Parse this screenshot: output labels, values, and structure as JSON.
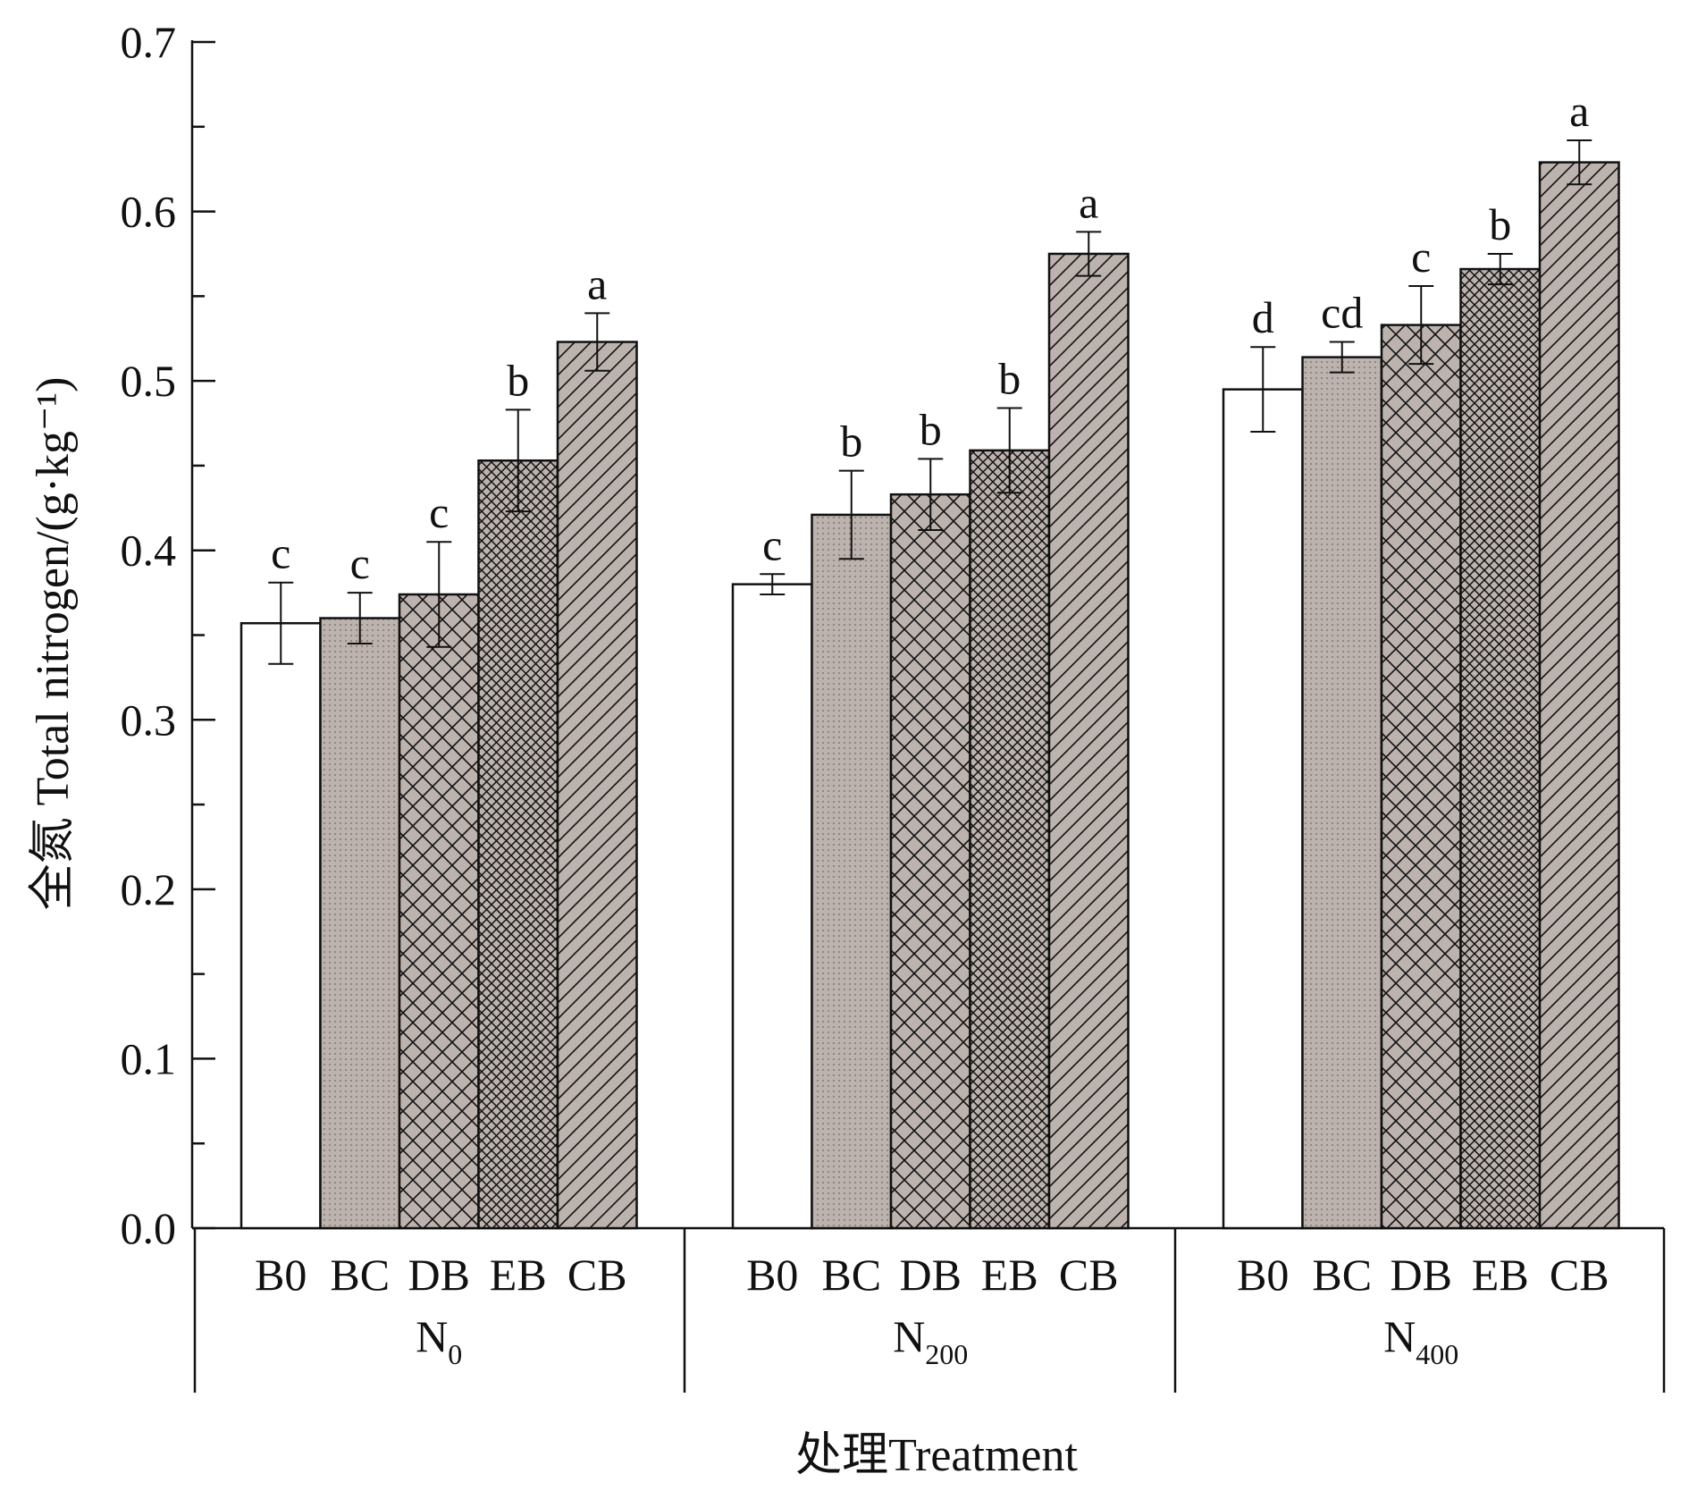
{
  "chart_data": {
    "type": "bar",
    "ylabel": "全氮 Total nitrogen/(g·kg⁻¹)",
    "xlabel": "处理Treatment",
    "ylim": [
      0,
      0.7
    ],
    "yticks": [
      "0.0",
      "0.1",
      "0.2",
      "0.3",
      "0.4",
      "0.5",
      "0.6",
      "0.7"
    ],
    "ytick_values": [
      0,
      0.1,
      0.2,
      0.3,
      0.4,
      0.5,
      0.6,
      0.7
    ],
    "categories": [
      "B0",
      "BC",
      "DB",
      "EB",
      "CB"
    ],
    "groups": [
      {
        "label": "N",
        "sub": "0",
        "values": [
          0.357,
          0.36,
          0.374,
          0.453,
          0.523
        ],
        "errors": [
          0.024,
          0.015,
          0.031,
          0.03,
          0.017
        ],
        "letters": [
          "c",
          "c",
          "c",
          "b",
          "a"
        ]
      },
      {
        "label": "N",
        "sub": "200",
        "values": [
          0.38,
          0.421,
          0.433,
          0.459,
          0.575
        ],
        "errors": [
          0.006,
          0.026,
          0.021,
          0.025,
          0.013
        ],
        "letters": [
          "c",
          "b",
          "b",
          "b",
          "a"
        ]
      },
      {
        "label": "N",
        "sub": "400",
        "values": [
          0.495,
          0.514,
          0.533,
          0.566,
          0.629
        ],
        "errors": [
          0.025,
          0.009,
          0.023,
          0.009,
          0.013
        ],
        "letters": [
          "d",
          "cd",
          "c",
          "b",
          "a"
        ]
      }
    ],
    "patterns": [
      "plain",
      "dots",
      "crosshatch",
      "dense-crosshatch",
      "diagonal"
    ],
    "colors": {
      "plain": "#ffffff",
      "fill": "#bdb3ae",
      "stroke": "#111111"
    },
    "grid": false,
    "legend": "none"
  }
}
